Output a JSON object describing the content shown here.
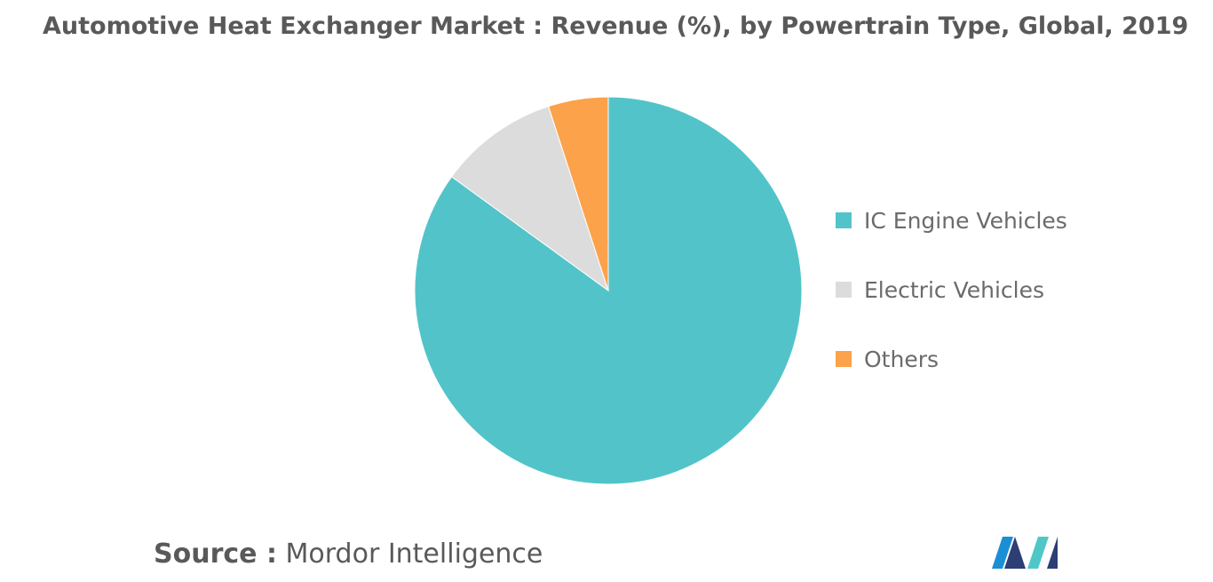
{
  "title": "Automotive Heat Exchanger Market : Revenue (%), by Powertrain Type, Global, 2019",
  "chart_data": {
    "type": "pie",
    "title": "Automotive Heat Exchanger Market : Revenue (%), by Powertrain Type, Global, 2019",
    "slices": [
      {
        "name": "IC Engine Vehicles",
        "value": 85,
        "color": "#52c4c9"
      },
      {
        "name": "Electric Vehicles",
        "value": 10,
        "color": "#dcdcdc"
      },
      {
        "name": "Others",
        "value": 5,
        "color": "#fca24a"
      }
    ],
    "legend_position": "right"
  },
  "source": {
    "label": "Source :",
    "text": "Mordor Intelligence"
  },
  "logo": {
    "name": "mordor-intelligence-logo",
    "colors": [
      "#1a8fd6",
      "#2c3e73",
      "#4fc7c7"
    ]
  }
}
